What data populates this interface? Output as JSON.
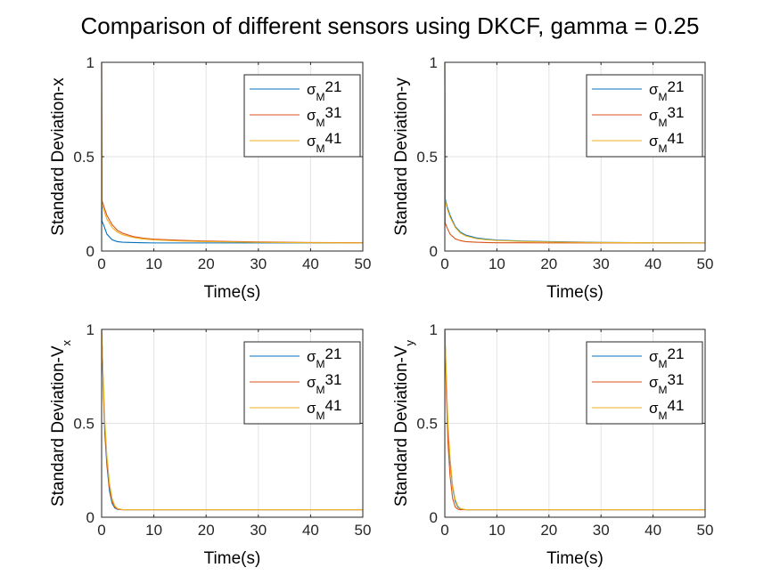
{
  "figure": {
    "title": "Comparison of different sensors using DKCF, gamma = 0.25"
  },
  "colors": {
    "axis": "#262626",
    "grid": "#e3e3e3",
    "series": [
      "#0072BD",
      "#D95319",
      "#EDB120"
    ]
  },
  "chart_data": [
    {
      "type": "line",
      "xlabel": "Time(s)",
      "ylabel": "Standard Deviation-x",
      "ylabel_sub": "",
      "xlim": [
        0,
        50
      ],
      "ylim": [
        0,
        1
      ],
      "xticks": [
        "0",
        "10",
        "20",
        "30",
        "40",
        "50"
      ],
      "yticks": [
        "0",
        "0.5",
        "1"
      ],
      "grid": true,
      "legend_position": "top-right",
      "series": [
        {
          "name_base": "σ",
          "name_sub": "M",
          "name_rest": "21",
          "x": [
            0,
            0.05,
            0.5,
            1,
            2,
            3,
            4,
            6,
            8,
            10,
            15,
            20,
            30,
            40,
            50
          ],
          "y": [
            1,
            0.16,
            0.13,
            0.09,
            0.06,
            0.05,
            0.047,
            0.045,
            0.044,
            0.043,
            0.043,
            0.043,
            0.043,
            0.043,
            0.043
          ]
        },
        {
          "name_base": "σ",
          "name_sub": "M",
          "name_rest": "31",
          "x": [
            0,
            0.05,
            0.5,
            1,
            2,
            3,
            4,
            6,
            8,
            10,
            15,
            20,
            30,
            40,
            50
          ],
          "y": [
            1,
            0.27,
            0.23,
            0.19,
            0.14,
            0.11,
            0.095,
            0.077,
            0.068,
            0.063,
            0.057,
            0.053,
            0.048,
            0.045,
            0.044
          ]
        },
        {
          "name_base": "σ",
          "name_sub": "M",
          "name_rest": "41",
          "x": [
            0,
            0.05,
            0.5,
            1,
            2,
            3,
            4,
            6,
            8,
            10,
            15,
            20,
            30,
            40,
            50
          ],
          "y": [
            1,
            0.25,
            0.21,
            0.17,
            0.125,
            0.1,
            0.087,
            0.072,
            0.064,
            0.059,
            0.053,
            0.05,
            0.046,
            0.044,
            0.043
          ]
        }
      ]
    },
    {
      "type": "line",
      "xlabel": "Time(s)",
      "ylabel": "Standard Deviation-y",
      "ylabel_sub": "",
      "xlim": [
        0,
        50
      ],
      "ylim": [
        0,
        1
      ],
      "xticks": [
        "0",
        "10",
        "20",
        "30",
        "40",
        "50"
      ],
      "yticks": [
        "0",
        "0.5",
        "1"
      ],
      "grid": true,
      "legend_position": "top-right",
      "series": [
        {
          "name_base": "σ",
          "name_sub": "M",
          "name_rest": "21",
          "x": [
            0,
            0.05,
            0.5,
            1,
            2,
            3,
            4,
            6,
            8,
            10,
            15,
            20,
            30,
            40,
            50
          ],
          "y": [
            1,
            0.28,
            0.23,
            0.19,
            0.13,
            0.1,
            0.085,
            0.07,
            0.063,
            0.058,
            0.053,
            0.05,
            0.046,
            0.044,
            0.043
          ]
        },
        {
          "name_base": "σ",
          "name_sub": "M",
          "name_rest": "31",
          "x": [
            0,
            0.05,
            0.5,
            1,
            2,
            3,
            4,
            6,
            8,
            10,
            15,
            20,
            30,
            40,
            50
          ],
          "y": [
            1,
            0.15,
            0.12,
            0.09,
            0.065,
            0.055,
            0.05,
            0.047,
            0.045,
            0.044,
            0.044,
            0.043,
            0.043,
            0.043,
            0.043
          ]
        },
        {
          "name_base": "σ",
          "name_sub": "M",
          "name_rest": "41",
          "x": [
            0,
            0.05,
            0.5,
            1,
            2,
            3,
            4,
            6,
            8,
            10,
            15,
            20,
            30,
            40,
            50
          ],
          "y": [
            1,
            0.27,
            0.22,
            0.18,
            0.125,
            0.095,
            0.08,
            0.066,
            0.06,
            0.056,
            0.051,
            0.048,
            0.045,
            0.044,
            0.043
          ]
        }
      ]
    },
    {
      "type": "line",
      "xlabel": "Time(s)",
      "ylabel": "Standard Deviation-V",
      "ylabel_sub": "x",
      "xlim": [
        0,
        50
      ],
      "ylim": [
        0,
        1
      ],
      "xticks": [
        "0",
        "10",
        "20",
        "30",
        "40",
        "50"
      ],
      "yticks": [
        "0",
        "0.5",
        "1"
      ],
      "grid": true,
      "legend_position": "top-right",
      "series": [
        {
          "name_base": "σ",
          "name_sub": "M",
          "name_rest": "21",
          "x": [
            0,
            0.3,
            0.6,
            1,
            1.5,
            2,
            2.5,
            3,
            4,
            10,
            20,
            30,
            40,
            50
          ],
          "y": [
            1,
            0.7,
            0.45,
            0.28,
            0.14,
            0.075,
            0.05,
            0.042,
            0.04,
            0.04,
            0.04,
            0.04,
            0.04,
            0.04
          ]
        },
        {
          "name_base": "σ",
          "name_sub": "M",
          "name_rest": "31",
          "x": [
            0,
            0.3,
            0.6,
            1,
            1.5,
            2,
            2.5,
            3,
            4,
            10,
            20,
            30,
            40,
            50
          ],
          "y": [
            1,
            0.72,
            0.48,
            0.3,
            0.16,
            0.085,
            0.055,
            0.044,
            0.04,
            0.04,
            0.04,
            0.04,
            0.04,
            0.04
          ]
        },
        {
          "name_base": "σ",
          "name_sub": "M",
          "name_rest": "41",
          "x": [
            0,
            0.3,
            0.6,
            1,
            1.5,
            2,
            2.5,
            3,
            4,
            10,
            20,
            30,
            40,
            50
          ],
          "y": [
            1,
            0.75,
            0.52,
            0.33,
            0.18,
            0.1,
            0.062,
            0.047,
            0.04,
            0.04,
            0.04,
            0.04,
            0.04,
            0.04
          ]
        }
      ]
    },
    {
      "type": "line",
      "xlabel": "Time(s)",
      "ylabel": "Standard Deviation-V",
      "ylabel_sub": "y",
      "xlim": [
        0,
        50
      ],
      "ylim": [
        0,
        1
      ],
      "xticks": [
        "0",
        "10",
        "20",
        "30",
        "40",
        "50"
      ],
      "yticks": [
        "0",
        "0.5",
        "1"
      ],
      "grid": true,
      "legend_position": "top-right",
      "series": [
        {
          "name_base": "σ",
          "name_sub": "M",
          "name_rest": "21",
          "x": [
            0,
            0.3,
            0.6,
            1,
            1.5,
            2,
            2.5,
            3,
            4,
            10,
            20,
            30,
            40,
            50
          ],
          "y": [
            1,
            0.72,
            0.47,
            0.3,
            0.16,
            0.085,
            0.055,
            0.044,
            0.04,
            0.04,
            0.04,
            0.04,
            0.04,
            0.04
          ]
        },
        {
          "name_base": "σ",
          "name_sub": "M",
          "name_rest": "31",
          "x": [
            0,
            0.3,
            0.6,
            1,
            1.5,
            2,
            2.5,
            3,
            4,
            10,
            20,
            30,
            40,
            50
          ],
          "y": [
            1,
            0.66,
            0.4,
            0.22,
            0.1,
            0.055,
            0.043,
            0.04,
            0.04,
            0.04,
            0.04,
            0.04,
            0.04,
            0.04
          ]
        },
        {
          "name_base": "σ",
          "name_sub": "M",
          "name_rest": "41",
          "x": [
            0,
            0.3,
            0.6,
            1,
            1.5,
            2,
            2.5,
            3,
            4,
            10,
            20,
            30,
            40,
            50
          ],
          "y": [
            1,
            0.74,
            0.5,
            0.32,
            0.17,
            0.095,
            0.06,
            0.046,
            0.04,
            0.04,
            0.04,
            0.04,
            0.04,
            0.04
          ]
        }
      ]
    }
  ]
}
